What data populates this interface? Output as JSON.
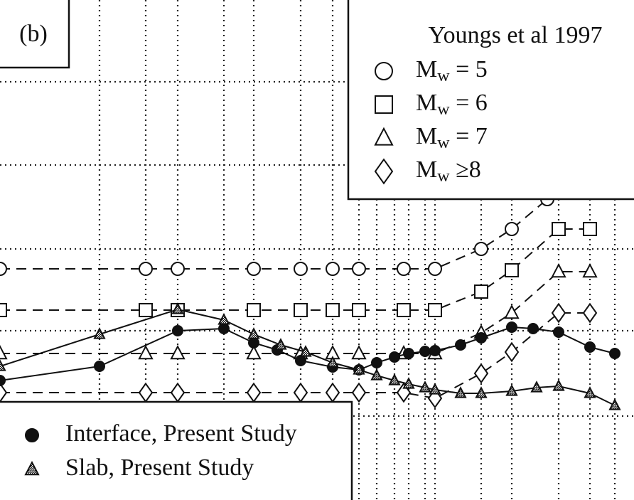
{
  "chart_data": {
    "type": "line",
    "panel_label": "(b)",
    "legend_title": "Youngs et al 1997",
    "xlim": [
      0,
      892
    ],
    "ylim": [
      0,
      703
    ],
    "xticks": [
      140,
      205,
      250,
      315,
      357,
      423,
      468,
      505,
      530,
      555,
      575,
      598,
      612,
      677,
      720,
      786,
      830,
      865
    ],
    "yticks": [
      118,
      238,
      353,
      471,
      588
    ],
    "series": [
      {
        "name": "Mw = 5",
        "marker": "circle",
        "style": "dashed",
        "color": "#111",
        "x": [
          0,
          205,
          250,
          357,
          423,
          468,
          505,
          568,
          612,
          677,
          720,
          770
        ],
        "values": [
          325,
          325,
          325,
          325,
          325,
          325,
          325,
          325,
          325,
          353,
          381,
          423
        ]
      },
      {
        "name": "Mw = 6",
        "marker": "square",
        "style": "dashed",
        "color": "#111",
        "x": [
          0,
          205,
          250,
          357,
          423,
          468,
          505,
          568,
          612,
          677,
          720,
          786,
          830
        ],
        "values": [
          267,
          267,
          267,
          267,
          267,
          267,
          267,
          267,
          267,
          293,
          323,
          381,
          381
        ]
      },
      {
        "name": "Mw = 7",
        "marker": "triangle",
        "style": "dashed",
        "color": "#111",
        "x": [
          0,
          205,
          250,
          357,
          423,
          468,
          505,
          568,
          612,
          677,
          720,
          786,
          830
        ],
        "values": [
          206,
          206,
          206,
          206,
          206,
          206,
          206,
          206,
          206,
          235,
          263,
          321,
          321
        ]
      },
      {
        "name": "Mw ≥8",
        "marker": "diamond",
        "style": "dashed",
        "color": "#111",
        "x": [
          0,
          205,
          250,
          357,
          423,
          468,
          505,
          568,
          612,
          677,
          720,
          786,
          830
        ],
        "values": [
          151,
          151,
          151,
          151,
          151,
          151,
          151,
          151,
          143,
          178,
          208,
          263,
          263
        ]
      },
      {
        "name": "Interface, Present Study",
        "marker": "dot",
        "style": "solid",
        "color": "#111",
        "x": [
          0,
          140,
          250,
          315,
          357,
          390,
          423,
          468,
          505,
          530,
          555,
          575,
          598,
          612,
          648,
          677,
          720,
          750,
          786,
          830,
          865
        ],
        "values": [
          168,
          188,
          238,
          241,
          221,
          211,
          196,
          187,
          183,
          193,
          201,
          206,
          209,
          210,
          218,
          228,
          243,
          241,
          236,
          215,
          206
        ]
      },
      {
        "name": "Slab, Present Study",
        "marker": "hatched-triangle",
        "style": "solid",
        "color": "#111",
        "x": [
          0,
          140,
          250,
          315,
          357,
          395,
          430,
          468,
          505,
          530,
          555,
          575,
          598,
          612,
          648,
          677,
          720,
          755,
          786,
          830,
          865
        ],
        "values": [
          188,
          233,
          268,
          253,
          233,
          218,
          208,
          193,
          183,
          175,
          168,
          163,
          158,
          155,
          150,
          150,
          153,
          158,
          160,
          150,
          133
        ]
      }
    ]
  }
}
